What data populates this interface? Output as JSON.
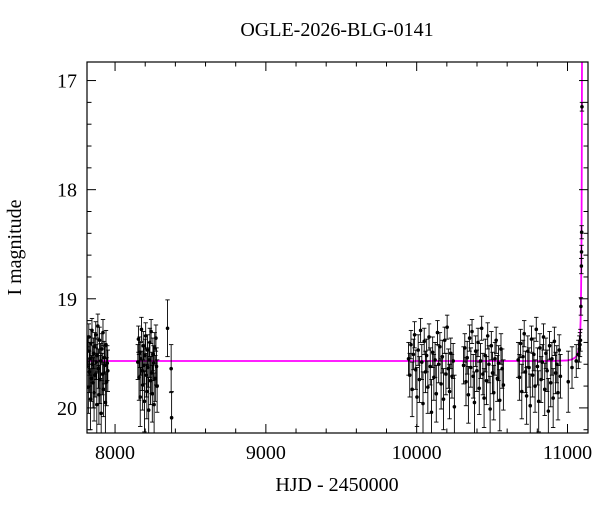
{
  "title": "OGLE-2026-BLG-0141",
  "chart_data": {
    "type": "scatter",
    "title": "OGLE-2026-BLG-0141",
    "xlabel": "HJD - 2450000",
    "ylabel": "I magnitude",
    "xlim": [
      7814,
      11136
    ],
    "ylim": [
      20.23,
      16.83
    ],
    "x_major_ticks": [
      8000,
      9000,
      10000,
      11000
    ],
    "x_minor_step": 200,
    "y_major_ticks": [
      17,
      18,
      19,
      20
    ],
    "y_minor_step": 0.2,
    "grid": false,
    "legend": "none",
    "colors": {
      "data": "#000000",
      "model": "#ff00ff",
      "frame": "#000000"
    },
    "baseline_mag": 19.57,
    "model_curve": [
      [
        7814,
        19.57
      ],
      [
        10900,
        19.57
      ],
      [
        11000,
        19.565
      ],
      [
        11030,
        19.555
      ],
      [
        11050,
        19.54
      ],
      [
        11062,
        19.52
      ],
      [
        11070,
        19.49
      ],
      [
        11076,
        19.45
      ],
      [
        11080,
        19.4
      ],
      [
        11084,
        19.32
      ],
      [
        11087,
        19.2
      ],
      [
        11089,
        19.05
      ],
      [
        11091,
        18.82
      ],
      [
        11092.5,
        18.55
      ],
      [
        11093.5,
        18.25
      ],
      [
        11094.5,
        17.85
      ],
      [
        11095.2,
        17.45
      ],
      [
        11095.8,
        17.0
      ],
      [
        11096.3,
        16.8
      ]
    ],
    "point_groups": [
      {
        "name": "season-1",
        "points": [
          [
            7815,
            19.62,
            0.18
          ],
          [
            7819,
            19.48,
            0.14
          ],
          [
            7823,
            19.81,
            0.24
          ],
          [
            7826,
            19.35,
            0.12
          ],
          [
            7830,
            19.67,
            0.19
          ],
          [
            7833,
            19.55,
            0.15
          ],
          [
            7837,
            19.92,
            0.28
          ],
          [
            7840,
            19.41,
            0.13
          ],
          [
            7844,
            19.73,
            0.21
          ],
          [
            7847,
            19.29,
            0.11
          ],
          [
            7851,
            19.6,
            0.17
          ],
          [
            7854,
            19.77,
            0.23
          ],
          [
            7858,
            19.5,
            0.14
          ],
          [
            7861,
            19.86,
            0.26
          ],
          [
            7865,
            19.44,
            0.13
          ],
          [
            7868,
            19.7,
            0.2
          ],
          [
            7872,
            19.33,
            0.12
          ],
          [
            7875,
            19.58,
            0.16
          ],
          [
            7879,
            19.97,
            0.29
          ],
          [
            7882,
            19.52,
            0.15
          ],
          [
            7886,
            19.25,
            0.11
          ],
          [
            7890,
            19.64,
            0.18
          ],
          [
            7893,
            19.88,
            0.27
          ],
          [
            7897,
            19.38,
            0.12
          ],
          [
            7900,
            19.74,
            0.22
          ],
          [
            7904,
            19.57,
            0.16
          ],
          [
            7908,
            20.05,
            0.3
          ],
          [
            7912,
            19.46,
            0.14
          ],
          [
            7916,
            19.69,
            0.19
          ],
          [
            7920,
            19.31,
            0.12
          ],
          [
            7924,
            19.83,
            0.25
          ],
          [
            7928,
            19.54,
            0.15
          ],
          [
            7932,
            19.61,
            0.17
          ],
          [
            7936,
            19.95,
            0.28
          ],
          [
            7940,
            19.42,
            0.13
          ],
          [
            7944,
            19.76,
            0.22
          ],
          [
            7948,
            19.59,
            0.16
          ],
          [
            7952,
            19.66,
            0.19
          ]
        ]
      },
      {
        "name": "season-2",
        "points": [
          [
            8151,
            19.58,
            0.16
          ],
          [
            8155,
            19.37,
            0.12
          ],
          [
            8159,
            19.72,
            0.21
          ],
          [
            8163,
            19.49,
            0.14
          ],
          [
            8167,
            19.9,
            0.27
          ],
          [
            8171,
            19.55,
            0.15
          ],
          [
            8175,
            19.28,
            0.11
          ],
          [
            8179,
            19.66,
            0.18
          ],
          [
            8183,
            19.79,
            0.23
          ],
          [
            8187,
            19.43,
            0.13
          ],
          [
            8191,
            19.61,
            0.17
          ],
          [
            8195,
            19.94,
            0.28
          ],
          [
            8199,
            19.52,
            0.15
          ],
          [
            8203,
            19.34,
            0.12
          ],
          [
            8207,
            19.7,
            0.2
          ],
          [
            8211,
            19.85,
            0.25
          ],
          [
            8215,
            19.47,
            0.14
          ],
          [
            8219,
            19.63,
            0.18
          ],
          [
            8223,
            20.02,
            0.3
          ],
          [
            8227,
            19.56,
            0.16
          ],
          [
            8231,
            19.4,
            0.13
          ],
          [
            8235,
            19.75,
            0.22
          ],
          [
            8239,
            19.3,
            0.11
          ],
          [
            8243,
            19.68,
            0.19
          ],
          [
            8247,
            19.87,
            0.26
          ],
          [
            8251,
            19.51,
            0.15
          ],
          [
            8255,
            19.59,
            0.16
          ],
          [
            8259,
            19.97,
            0.29
          ],
          [
            8263,
            19.45,
            0.14
          ],
          [
            8267,
            19.73,
            0.21
          ],
          [
            8271,
            19.36,
            0.12
          ],
          [
            8275,
            19.62,
            0.17
          ],
          [
            8279,
            19.8,
            0.24
          ]
        ]
      },
      {
        "name": "season-2-tail",
        "points": [
          [
            8348,
            19.27,
            0.26
          ],
          [
            8372,
            19.64,
            0.22
          ],
          [
            8375,
            20.09,
            0.24
          ]
        ]
      },
      {
        "name": "season-3",
        "points": [
          [
            9946,
            19.55,
            0.15
          ],
          [
            9954,
            19.7,
            0.2
          ],
          [
            9962,
            19.42,
            0.13
          ],
          [
            9970,
            19.83,
            0.25
          ],
          [
            9978,
            19.51,
            0.14
          ],
          [
            9986,
            19.33,
            0.12
          ],
          [
            9994,
            19.65,
            0.18
          ],
          [
            10002,
            19.9,
            0.27
          ],
          [
            10010,
            19.47,
            0.14
          ],
          [
            10018,
            19.74,
            0.21
          ],
          [
            10026,
            19.29,
            0.11
          ],
          [
            10034,
            19.58,
            0.16
          ],
          [
            10042,
            19.96,
            0.29
          ],
          [
            10050,
            19.39,
            0.12
          ],
          [
            10058,
            19.67,
            0.19
          ],
          [
            10066,
            19.52,
            0.15
          ],
          [
            10074,
            19.81,
            0.24
          ],
          [
            10082,
            19.35,
            0.12
          ],
          [
            10090,
            19.62,
            0.17
          ],
          [
            10098,
            20.04,
            0.3
          ],
          [
            10106,
            19.49,
            0.14
          ],
          [
            10114,
            19.72,
            0.21
          ],
          [
            10122,
            19.56,
            0.16
          ],
          [
            10130,
            19.87,
            0.26
          ],
          [
            10138,
            19.31,
            0.11
          ],
          [
            10146,
            19.6,
            0.17
          ],
          [
            10154,
            19.44,
            0.13
          ],
          [
            10162,
            19.78,
            0.23
          ],
          [
            10170,
            19.53,
            0.15
          ],
          [
            10178,
            19.92,
            0.28
          ],
          [
            10186,
            19.38,
            0.12
          ],
          [
            10194,
            19.69,
            0.19
          ],
          [
            10202,
            19.26,
            0.11
          ],
          [
            10210,
            19.64,
            0.18
          ],
          [
            10218,
            19.85,
            0.25
          ],
          [
            10226,
            19.5,
            0.14
          ],
          [
            10234,
            19.71,
            0.2
          ],
          [
            10242,
            19.57,
            0.16
          ],
          [
            10250,
            19.99,
            0.29
          ]
        ]
      },
      {
        "name": "season-4",
        "points": [
          [
            10311,
            19.61,
            0.17
          ],
          [
            10319,
            19.45,
            0.13
          ],
          [
            10327,
            19.76,
            0.22
          ],
          [
            10335,
            19.54,
            0.15
          ],
          [
            10343,
            19.88,
            0.26
          ],
          [
            10351,
            19.36,
            0.12
          ],
          [
            10359,
            19.63,
            0.18
          ],
          [
            10367,
            19.3,
            0.11
          ],
          [
            10375,
            19.71,
            0.2
          ],
          [
            10383,
            19.95,
            0.28
          ],
          [
            10391,
            19.48,
            0.14
          ],
          [
            10399,
            19.66,
            0.19
          ],
          [
            10407,
            19.4,
            0.13
          ],
          [
            10415,
            19.82,
            0.24
          ],
          [
            10423,
            19.57,
            0.16
          ],
          [
            10431,
            19.27,
            0.11
          ],
          [
            10439,
            19.69,
            0.19
          ],
          [
            10447,
            19.91,
            0.27
          ],
          [
            10455,
            19.52,
            0.15
          ],
          [
            10463,
            19.75,
            0.22
          ],
          [
            10471,
            19.34,
            0.12
          ],
          [
            10479,
            19.6,
            0.17
          ],
          [
            10487,
            20.01,
            0.3
          ],
          [
            10495,
            19.43,
            0.13
          ],
          [
            10503,
            19.68,
            0.19
          ],
          [
            10511,
            19.86,
            0.25
          ],
          [
            10519,
            19.55,
            0.15
          ],
          [
            10527,
            19.38,
            0.12
          ],
          [
            10535,
            19.73,
            0.21
          ],
          [
            10543,
            19.59,
            0.16
          ],
          [
            10551,
            19.93,
            0.28
          ],
          [
            10559,
            19.46,
            0.14
          ],
          [
            10567,
            19.64,
            0.18
          ],
          [
            10575,
            19.79,
            0.23
          ]
        ]
      },
      {
        "name": "season-5",
        "points": [
          [
            10673,
            19.56,
            0.16
          ],
          [
            10681,
            19.72,
            0.21
          ],
          [
            10689,
            19.41,
            0.13
          ],
          [
            10697,
            19.85,
            0.25
          ],
          [
            10705,
            19.53,
            0.15
          ],
          [
            10713,
            19.32,
            0.12
          ],
          [
            10721,
            19.67,
            0.19
          ],
          [
            10729,
            19.89,
            0.26
          ],
          [
            10737,
            19.48,
            0.14
          ],
          [
            10745,
            19.63,
            0.18
          ],
          [
            10753,
            19.98,
            0.29
          ],
          [
            10761,
            19.37,
            0.12
          ],
          [
            10769,
            19.7,
            0.2
          ],
          [
            10777,
            19.51,
            0.15
          ],
          [
            10785,
            19.8,
            0.24
          ],
          [
            10793,
            19.28,
            0.11
          ],
          [
            10801,
            19.62,
            0.17
          ],
          [
            10809,
            19.94,
            0.28
          ],
          [
            10817,
            19.45,
            0.13
          ],
          [
            10825,
            19.74,
            0.21
          ],
          [
            10833,
            19.58,
            0.16
          ],
          [
            10841,
            19.35,
            0.12
          ],
          [
            10849,
            19.83,
            0.24
          ],
          [
            10857,
            19.5,
            0.14
          ],
          [
            10865,
            19.66,
            0.19
          ],
          [
            10873,
            20.03,
            0.3
          ],
          [
            10881,
            19.43,
            0.13
          ],
          [
            10889,
            19.77,
            0.22
          ],
          [
            10897,
            19.55,
            0.15
          ],
          [
            10905,
            19.91,
            0.27
          ],
          [
            10913,
            19.39,
            0.13
          ],
          [
            10921,
            19.68,
            0.19
          ],
          [
            10929,
            19.6,
            0.17
          ],
          [
            10937,
            19.86,
            0.25
          ],
          [
            10945,
            19.47,
            0.14
          ],
          [
            10953,
            19.71,
            0.2
          ]
        ]
      },
      {
        "name": "event-rise",
        "points": [
          [
            11005,
            19.76,
            0.28
          ],
          [
            11030,
            19.63,
            0.19
          ],
          [
            11058,
            19.57,
            0.15
          ],
          [
            11072,
            19.51,
            0.13
          ],
          [
            11079,
            19.46,
            0.12
          ],
          [
            11083,
            19.42,
            0.11
          ],
          [
            11086,
            19.38,
            0.1
          ],
          [
            11089,
            19.07,
            0.08
          ],
          [
            11092,
            18.7,
            0.07
          ],
          [
            11093,
            18.57,
            0.06
          ],
          [
            11094,
            18.39,
            0.06
          ],
          [
            11096,
            17.24,
            0.04
          ]
        ]
      }
    ]
  }
}
